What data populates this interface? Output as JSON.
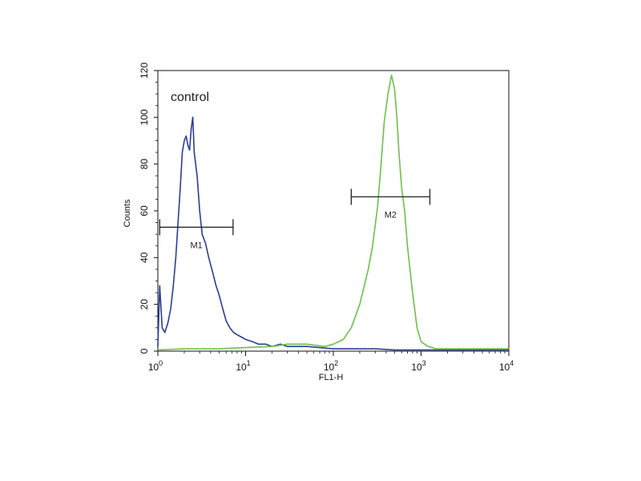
{
  "chart_data": {
    "type": "line",
    "title": "",
    "xlabel": "FL1-H",
    "ylabel": "Counts",
    "xscale": "log",
    "xlim": [
      1,
      10000
    ],
    "ylim": [
      0,
      120
    ],
    "grid": false,
    "x_ticks": [
      {
        "value": 1,
        "base": "10",
        "exp": "0"
      },
      {
        "value": 10,
        "base": "10",
        "exp": "1"
      },
      {
        "value": 100,
        "base": "10",
        "exp": "2"
      },
      {
        "value": 1000,
        "base": "10",
        "exp": "3"
      },
      {
        "value": 10000,
        "base": "10",
        "exp": "4"
      }
    ],
    "y_ticks": [
      "0",
      "20",
      "40",
      "60",
      "80",
      "100",
      "120"
    ],
    "annotation": "control",
    "markers": [
      {
        "label": "M1",
        "range": [
          1.05,
          7.2
        ],
        "y": 53
      },
      {
        "label": "M2",
        "range": [
          160,
          1260
        ],
        "y": 66
      }
    ],
    "series": [
      {
        "color": "#2b3d96",
        "x": [
          1.0,
          1.05,
          1.12,
          1.2,
          1.3,
          1.4,
          1.5,
          1.6,
          1.7,
          1.8,
          1.9,
          2.0,
          2.1,
          2.2,
          2.3,
          2.4,
          2.5,
          2.6,
          2.8,
          3.0,
          3.2,
          3.5,
          3.8,
          4.2,
          4.6,
          5.0,
          5.5,
          6.0,
          6.6,
          7.3,
          8.0,
          9.0,
          10,
          12,
          14,
          17,
          20,
          25,
          30,
          40,
          50,
          70,
          100,
          150,
          200,
          300,
          500,
          800,
          1200,
          2000,
          3000,
          5000,
          10000
        ],
        "y": [
          2,
          28,
          10,
          8,
          12,
          18,
          28,
          40,
          55,
          70,
          85,
          90,
          92,
          88,
          86,
          95,
          100,
          85,
          75,
          60,
          50,
          46,
          40,
          34,
          28,
          24,
          18,
          13,
          10,
          8,
          7,
          6,
          5,
          4,
          3,
          3,
          2,
          3,
          2,
          2,
          2,
          1.5,
          1,
          1,
          1,
          1,
          0.5,
          0.5,
          0.5,
          0.5,
          0.5,
          0.5,
          0.5
        ]
      },
      {
        "color": "#6ec04a",
        "x": [
          1.0,
          2,
          5,
          10,
          20,
          30,
          50,
          80,
          100,
          130,
          160,
          200,
          250,
          280,
          320,
          350,
          380,
          420,
          460,
          500,
          530,
          560,
          600,
          650,
          700,
          800,
          900,
          1000,
          1200,
          1500,
          2000,
          3000,
          5000,
          10000
        ],
        "y": [
          0.5,
          1,
          1,
          1.5,
          2,
          3,
          3,
          2,
          3,
          5,
          10,
          20,
          35,
          45,
          62,
          80,
          98,
          110,
          118,
          112,
          100,
          85,
          70,
          60,
          45,
          25,
          10,
          4,
          2,
          1,
          1,
          1,
          1,
          1
        ]
      }
    ]
  }
}
